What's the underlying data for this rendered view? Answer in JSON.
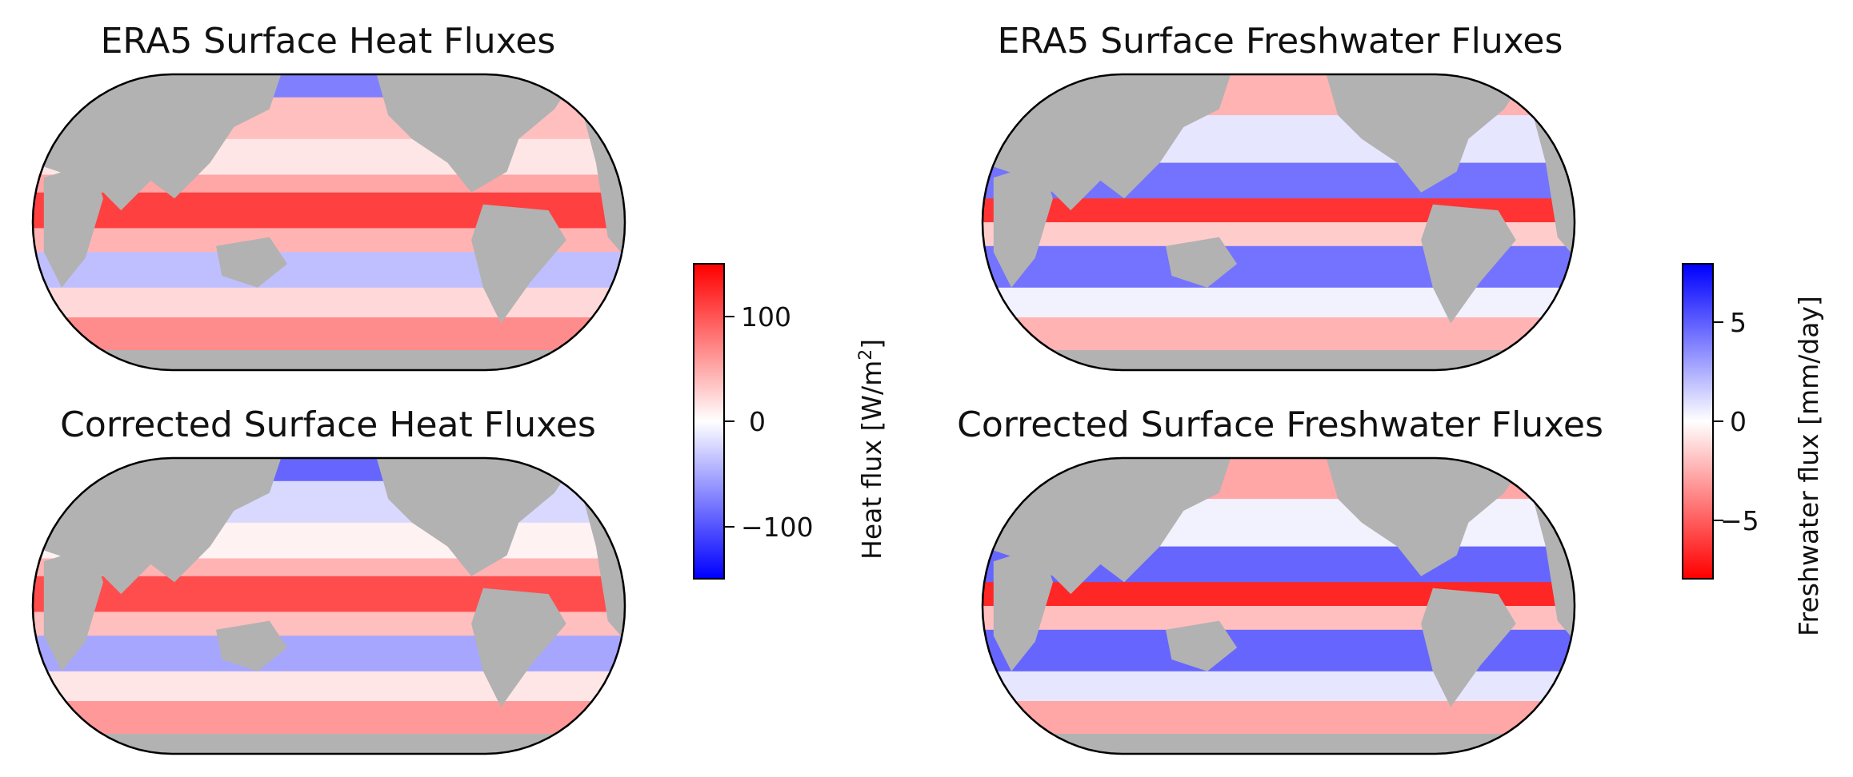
{
  "panels": {
    "heat_era5": {
      "title": "ERA5 Surface Heat Fluxes"
    },
    "heat_corrected": {
      "title": "Corrected Surface Heat Fluxes"
    },
    "fw_era5": {
      "title": "ERA5 Surface Freshwater Fluxes"
    },
    "fw_corrected": {
      "title": "Corrected Surface Freshwater Fluxes"
    }
  },
  "colorbars": {
    "heat": {
      "label_main": "Heat flux [W/m",
      "label_sup": "2",
      "label_end": "]",
      "range": [
        -150,
        150
      ],
      "colormap": "bwr",
      "ticks": [
        "100",
        "0",
        "−100"
      ],
      "tick_values": [
        100,
        0,
        -100
      ]
    },
    "freshwater": {
      "label": "Freshwater flux [mm/day]",
      "range": [
        -8,
        8
      ],
      "colormap": "bwr_r",
      "ticks": [
        "5",
        "0",
        "−5"
      ],
      "tick_values": [
        5,
        0,
        -5
      ]
    }
  },
  "colors": {
    "land": "#b2b2b2",
    "positive_heat": "#ff0000",
    "negative_heat": "#0000ff",
    "map_border": "#000000"
  }
}
